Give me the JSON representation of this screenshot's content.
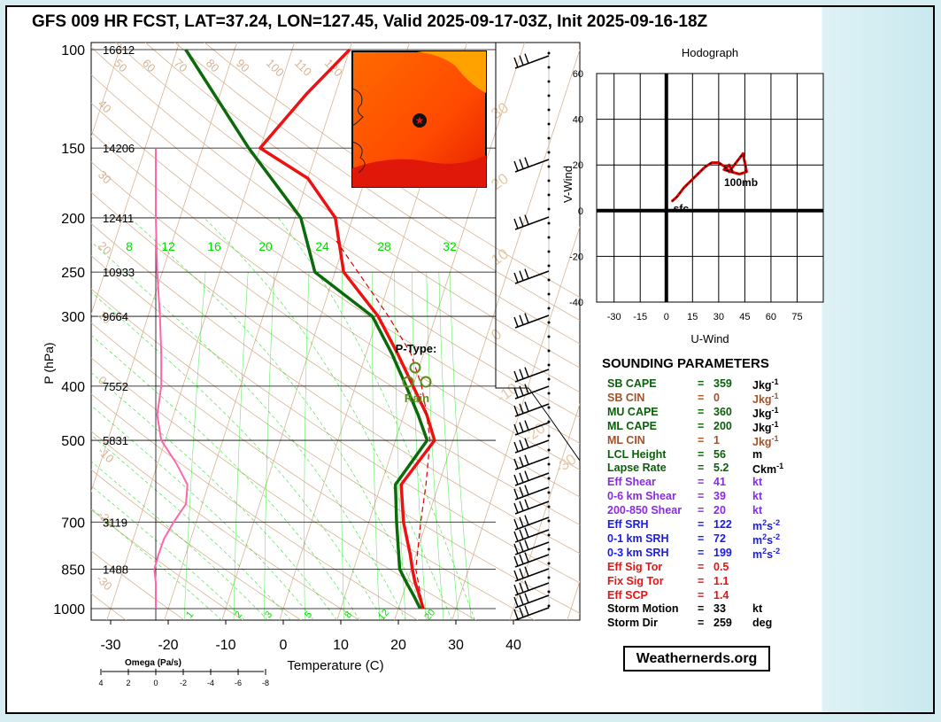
{
  "title": "GFS 009 HR FCST, LAT=37.24, LON=127.45, Valid 2025-09-17-03Z, Init 2025-09-16-18Z",
  "colors": {
    "temperature": "#ee1111",
    "dewpoint": "#0b6a0b",
    "parcel": "#dd0000",
    "omega": "#ff66aa",
    "mixing_ratio": "#00dd00",
    "dry_adiabat": "#d7b494",
    "isotherm": "#d7b494",
    "hodograph": "#dd0000"
  },
  "chart_data": [
    {
      "type": "line",
      "name": "skew-t",
      "xlabel": "Temperature (C)",
      "ylabel": "P (hPa)",
      "x_ticks": [
        "-30",
        "-20",
        "-10",
        "0",
        "10",
        "20",
        "30",
        "40"
      ],
      "y_scale": "log",
      "pressure_ticks": [
        "100",
        "150",
        "200",
        "250",
        "300",
        "400",
        "500",
        "700",
        "850",
        "1000"
      ],
      "heights_m": [
        "16612",
        "14206",
        "12411",
        "10933",
        "9664",
        "7552",
        "5831",
        "3119",
        "1488"
      ],
      "mixing_ratio_top_labels": [
        "8",
        "12",
        "16",
        "20",
        "24",
        "28",
        "32"
      ],
      "mixing_ratio_bottom_labels": [
        "1",
        "2",
        "3",
        "5",
        "8",
        "12",
        "20"
      ],
      "dry_adiabat_labels": [
        "50",
        "60",
        "70",
        "80",
        "90",
        "100",
        "110",
        "120",
        "40",
        "30",
        "20",
        "10",
        "0",
        "-10",
        "-20",
        "-30"
      ],
      "series": [
        {
          "name": "temperature",
          "p": [
            1000,
            950,
            900,
            850,
            800,
            700,
            600,
            500,
            450,
            400,
            350,
            300,
            250,
            200,
            170,
            150,
            120,
            100
          ],
          "t": [
            24.3,
            23.0,
            21.5,
            20.2,
            19.0,
            16.0,
            13.5,
            16.8,
            14.0,
            10.0,
            5.5,
            0.0,
            -8.5,
            -13.0,
            -20.0,
            -30.0,
            -25.0,
            -20.0
          ]
        },
        {
          "name": "dewpoint",
          "p": [
            1000,
            950,
            900,
            850,
            800,
            700,
            600,
            500,
            450,
            400,
            350,
            300,
            250,
            200,
            150,
            100
          ],
          "t": [
            23.8,
            22.0,
            20.0,
            18.0,
            17.0,
            14.8,
            12.5,
            15.5,
            12.5,
            8.8,
            4.5,
            -1.0,
            -13.5,
            -19.0,
            -32.0,
            -48.5
          ]
        },
        {
          "name": "parcel",
          "p": [
            1000,
            850,
            700,
            600,
            500,
            450,
            400,
            350,
            300,
            250,
            220
          ],
          "t": [
            24.3,
            20.8,
            19.0,
            17.8,
            16.0,
            14.0,
            11.5,
            7.8,
            1.8,
            -6.0,
            -11.5
          ]
        }
      ],
      "omega": {
        "label": "Omega (Pa/s)",
        "ticks": [
          "4",
          "2",
          "0",
          "-2",
          "-4",
          "-6",
          "-8"
        ],
        "p": [
          150,
          200,
          250,
          300,
          350,
          400,
          450,
          500,
          550,
          600,
          650,
          700,
          750,
          800,
          850,
          900,
          950,
          1000
        ],
        "values": [
          0.0,
          0.0,
          -0.1,
          -0.3,
          -0.4,
          -0.4,
          -0.1,
          -0.4,
          -1.5,
          -2.3,
          -2.2,
          -1.3,
          -0.6,
          -0.2,
          0.1,
          0.0,
          0.0,
          0.0
        ]
      },
      "ptype": {
        "label": "P-Type:",
        "value": "Rain"
      }
    },
    {
      "type": "line",
      "name": "hodograph",
      "title": "Hodograph",
      "xlabel": "U-Wind",
      "ylabel": "V-Wind",
      "xlim": [
        -40,
        90
      ],
      "ylim": [
        -40,
        60
      ],
      "x_ticks": [
        "-30",
        "-15",
        "0",
        "15",
        "30",
        "45",
        "60",
        "75"
      ],
      "y_ticks": [
        "60",
        "40",
        "20",
        "0",
        "-20",
        "-40"
      ],
      "u": [
        3,
        6,
        10,
        14,
        18,
        22,
        26,
        30,
        34,
        36,
        40,
        44,
        46,
        42,
        37,
        33,
        36,
        38
      ],
      "v": [
        4,
        6,
        10,
        13,
        16,
        19,
        21,
        21,
        19,
        17,
        21,
        25,
        17,
        16,
        17,
        18,
        20,
        17
      ],
      "labels": {
        "surface": "sfc",
        "top": "100mb"
      }
    }
  ],
  "sounding_parameters": {
    "title": "SOUNDING PARAMETERS",
    "rows": [
      {
        "name": "SB CAPE",
        "value": "359",
        "unit": "Jkg",
        "sup": "-1",
        "color": "#0b5e0b"
      },
      {
        "name": "SB CIN",
        "value": "0",
        "unit": "Jkg",
        "sup": "-1",
        "color": "#a0522d"
      },
      {
        "name": "MU CAPE",
        "value": "360",
        "unit": "Jkg",
        "sup": "-1",
        "color": "#0b5e0b"
      },
      {
        "name": "ML CAPE",
        "value": "200",
        "unit": "Jkg",
        "sup": "-1",
        "color": "#0b5e0b"
      },
      {
        "name": "ML CIN",
        "value": "1",
        "unit": "Jkg",
        "sup": "-1",
        "color": "#a0522d"
      },
      {
        "name": "LCL Height",
        "value": "56",
        "unit": "m",
        "sup": "",
        "color": "#0b5e0b"
      },
      {
        "name": "Lapse Rate",
        "value": "5.2",
        "unit": "Ckm",
        "sup": "-1",
        "color": "#0b5e0b"
      },
      {
        "name": "Eff Shear",
        "value": "41",
        "unit": "kt",
        "sup": "",
        "color": "#8a2be2"
      },
      {
        "name": "0-6 km Shear",
        "value": "39",
        "unit": "kt",
        "sup": "",
        "color": "#8a2be2"
      },
      {
        "name": "200-850 Shear",
        "value": "20",
        "unit": "kt",
        "sup": "",
        "color": "#8a2be2"
      },
      {
        "name": "Eff SRH",
        "value": "122",
        "unit": "m",
        "sup": "2",
        "unit2": "s",
        "sup2": "-2",
        "color": "#1a1aee"
      },
      {
        "name": "0-1 km SRH",
        "value": "72",
        "unit": "m",
        "sup": "2",
        "unit2": "s",
        "sup2": "-2",
        "color": "#1a1aee"
      },
      {
        "name": "0-3 km SRH",
        "value": "199",
        "unit": "m",
        "sup": "2",
        "unit2": "s",
        "sup2": "-2",
        "color": "#1a1aee"
      },
      {
        "name": "Eff Sig Tor",
        "value": "0.5",
        "unit": "",
        "sup": "",
        "color": "#ee1111"
      },
      {
        "name": "Fix Sig Tor",
        "value": "1.1",
        "unit": "",
        "sup": "",
        "color": "#ee1111"
      },
      {
        "name": "Eff SCP",
        "value": "1.4",
        "unit": "",
        "sup": "",
        "color": "#ee1111"
      },
      {
        "name": "Storm Motion",
        "value": "33",
        "unit": "kt",
        "sup": "",
        "color": "#000000"
      },
      {
        "name": "Storm Dir",
        "value": "259",
        "unit": "deg",
        "sup": "",
        "color": "#000000"
      }
    ]
  },
  "credit": "Weathernerds.org"
}
